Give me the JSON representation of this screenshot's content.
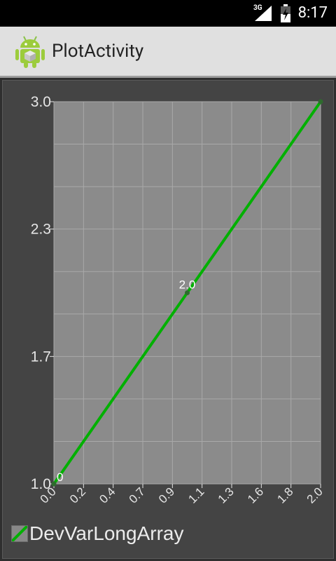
{
  "status_bar": {
    "time": "8:17",
    "network": "3G",
    "icons": [
      "signal-icon",
      "battery-icon"
    ]
  },
  "action_bar": {
    "title": "PlotActivity",
    "icon": "android-robot-icon"
  },
  "colors": {
    "plot_bg": "#8b8b8b",
    "frame_bg": "#444444",
    "line": "#00b000",
    "grid": "#a9a9a9"
  },
  "chart_data": {
    "type": "line",
    "title": "",
    "xlabel": "",
    "ylabel": "",
    "xlim": [
      0.0,
      2.0
    ],
    "ylim": [
      1.0,
      3.0
    ],
    "x_tick_labels": [
      "0.0",
      "0.2",
      "0.4",
      "0.7",
      "0.9",
      "1.1",
      "1.3",
      "1.6",
      "1.8",
      "2.0"
    ],
    "y_tick_labels": [
      "1.0",
      "1.7",
      "2.3",
      "3.0"
    ],
    "series": [
      {
        "name": "DevVarLongArray",
        "x": [
          0,
          1,
          2
        ],
        "y": [
          1,
          2,
          3
        ],
        "point_labels": [
          "0",
          "2.0",
          ""
        ]
      }
    ],
    "grid": true,
    "legend": "bottom-left"
  }
}
